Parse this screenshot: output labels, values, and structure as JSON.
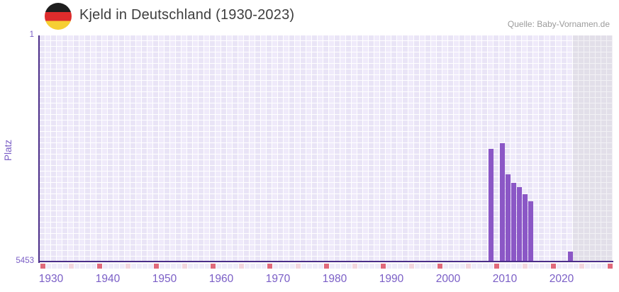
{
  "header": {
    "title": "Kjeld in Deutschland (1930-2023)",
    "source": "Quelle: Baby-Vornamen.de",
    "flag_icon": "german-flag-icon",
    "flag_colors": {
      "black": "#1e1e1e",
      "red": "#dd2c2c",
      "gold": "#f6cf33"
    }
  },
  "chart_data": {
    "type": "bar",
    "title": "Kjeld in Deutschland (1930-2023)",
    "xlabel": "",
    "ylabel": "Platz",
    "y_min_label": "1",
    "y_max_label": "5453",
    "y_range": [
      1,
      5453
    ],
    "y_inverted": true,
    "x_range_years": [
      1928,
      2029
    ],
    "x_tick_years": [
      1930,
      1940,
      1950,
      1960,
      1970,
      1980,
      1990,
      2000,
      2010,
      2020
    ],
    "grid": true,
    "legend": false,
    "points": [
      {
        "year": 2007,
        "rank": 2744
      },
      {
        "year": 2009,
        "rank": 2599
      },
      {
        "year": 2010,
        "rank": 3351
      },
      {
        "year": 2011,
        "rank": 3556
      },
      {
        "year": 2012,
        "rank": 3658
      },
      {
        "year": 2013,
        "rank": 3829
      },
      {
        "year": 2014,
        "rank": 4000
      },
      {
        "year": 2021,
        "rank": 5213
      }
    ],
    "no_data_region": {
      "from_year": 2022,
      "to_year": 2029
    },
    "decade_marker_years": [
      1928,
      1938,
      1948,
      1958,
      1968,
      1978,
      1988,
      1998,
      2008,
      2018,
      2028
    ],
    "mid_decade_marker_years": [
      1933,
      1943,
      1953,
      1963,
      1973,
      1983,
      1993,
      2003,
      2013,
      2023
    ],
    "colors": {
      "bar": "#8b57c6",
      "axis_line": "#4b2e89",
      "axis_text": "#7a5ec6",
      "grid_cell_a": "#e9e4f6",
      "grid_cell_b": "#efeafa",
      "no_data_cell": "#e2dfe9",
      "marker_decade": "#e0697a",
      "marker_mid_decade": "#f3d6de",
      "marker_default": "#efecf9"
    }
  }
}
